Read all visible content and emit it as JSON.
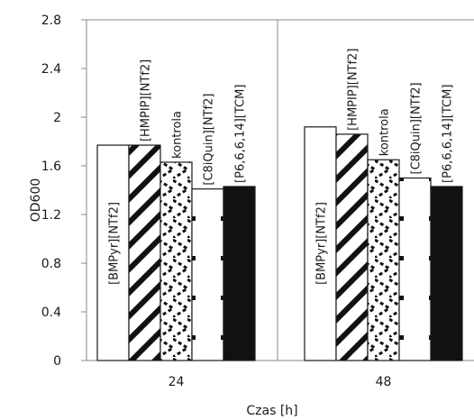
{
  "chart_data": {
    "type": "bar",
    "categories": [
      "24",
      "48"
    ],
    "series": [
      {
        "name": "[BMPyr][NTf2]",
        "values": [
          1.77,
          1.92
        ],
        "pattern": "white"
      },
      {
        "name": "[HMPIP][NTf2]",
        "values": [
          1.77,
          1.86
        ],
        "pattern": "diagonal"
      },
      {
        "name": "kontrola",
        "values": [
          1.63,
          1.65
        ],
        "pattern": "zigzag"
      },
      {
        "name": "[C8iQuin][NTf2]",
        "values": [
          1.41,
          1.5
        ],
        "pattern": "dots"
      },
      {
        "name": "[P6,6,6,14][TCM]",
        "values": [
          1.43,
          1.43
        ],
        "pattern": "black"
      }
    ],
    "xlabel": "Czas [h]",
    "ylabel": "OD600",
    "ylim": [
      0,
      2.8
    ],
    "yticks": [
      "0",
      "0.4",
      "0.8",
      "1.2",
      "1.6",
      "2",
      "2.4",
      "2.8"
    ],
    "grid": false,
    "legend": "none"
  }
}
